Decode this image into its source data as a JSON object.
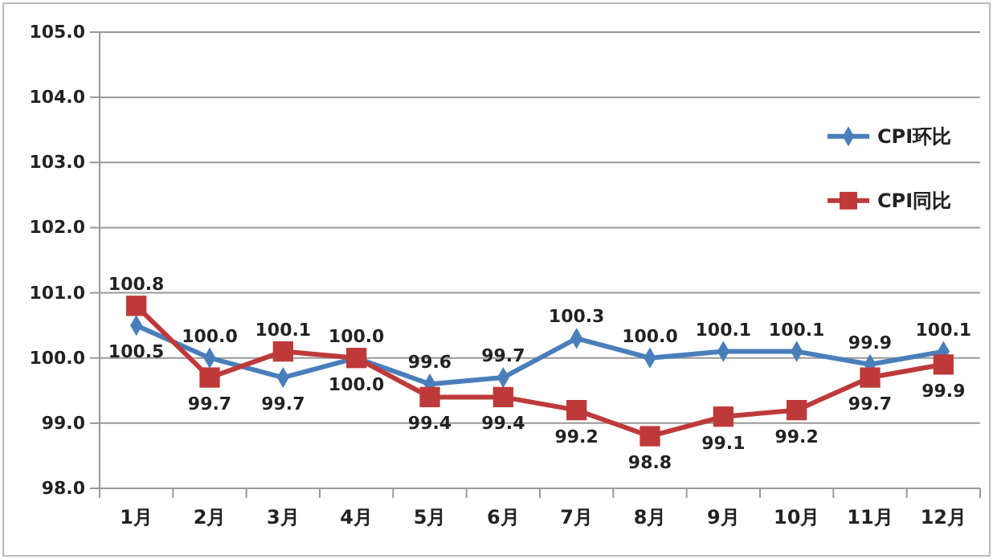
{
  "chart_data": {
    "type": "line",
    "categories": [
      "1月",
      "2月",
      "3月",
      "4月",
      "5月",
      "6月",
      "7月",
      "8月",
      "9月",
      "10月",
      "11月",
      "12月"
    ],
    "series": [
      {
        "name": "CPI环比",
        "color": "#4a7ebb",
        "marker": "diamond",
        "values": [
          100.5,
          100.0,
          99.7,
          100.0,
          99.6,
          99.7,
          100.3,
          100.0,
          100.1,
          100.1,
          99.9,
          100.1
        ],
        "value_labels": [
          "100.5",
          "100.0",
          "99.7",
          "100.0",
          "99.6",
          "99.7",
          "100.3",
          "100.0",
          "100.1",
          "100.1",
          "99.9",
          "100.1"
        ]
      },
      {
        "name": "CPI同比",
        "color": "#be3a3a",
        "marker": "square",
        "values": [
          100.8,
          99.7,
          100.1,
          100.0,
          99.4,
          99.4,
          99.2,
          98.8,
          99.1,
          99.2,
          99.7,
          99.9
        ],
        "value_labels": [
          "100.8",
          "99.7",
          "100.1",
          "100.0",
          "99.4",
          "99.4",
          "99.2",
          "98.8",
          "99.1",
          "99.2",
          "99.7",
          "99.9"
        ]
      }
    ],
    "ylim": [
      98,
      105
    ],
    "yticks": [
      {
        "value": 98,
        "label": "98.0"
      },
      {
        "value": 99,
        "label": "99.0"
      },
      {
        "value": 100,
        "label": "100.0"
      },
      {
        "value": 101,
        "label": "101.0"
      },
      {
        "value": 102,
        "label": "102.0"
      },
      {
        "value": 103,
        "label": "103.0"
      },
      {
        "value": 104,
        "label": "104.0"
      },
      {
        "value": 105,
        "label": "105.0"
      }
    ],
    "grid": "y",
    "legend": "right",
    "line_style": "solid"
  }
}
